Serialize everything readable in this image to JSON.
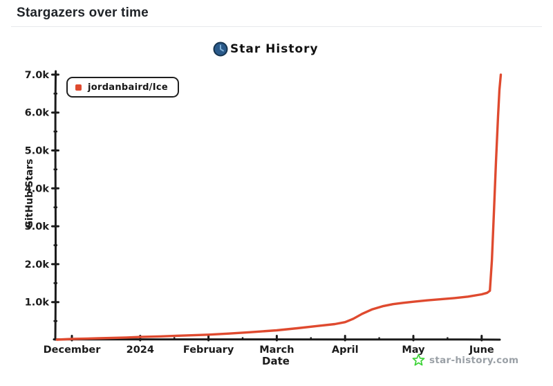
{
  "header": {
    "title": "Stargazers over time"
  },
  "chart": {
    "title": "Star History",
    "logo_color": "#2a5a8a",
    "legend": {
      "label": "jordanbaird/Ice",
      "marker_color": "#df4a2f",
      "interactable": true
    },
    "watermark": {
      "text": "star-history.com",
      "star_color": "#3bd235",
      "text_color": "#9aa0a6"
    }
  },
  "chart_data": {
    "type": "line",
    "title": "Star History",
    "xlabel": "Date",
    "ylabel": "GitHub Stars",
    "grid": false,
    "legend_position": "top-left",
    "x_tick_labels": [
      "December",
      "2024",
      "February",
      "March",
      "April",
      "May",
      "June"
    ],
    "x_tick_months": [
      0,
      1,
      2,
      3,
      4,
      5,
      6
    ],
    "x_note": "month index, 0 = December 2023 tick",
    "xlim": [
      -0.25,
      6.3
    ],
    "y_tick_labels": [
      "1.0k",
      "2.0k",
      "3.0k",
      "4.0k",
      "5.0k",
      "6.0k",
      "7.0k"
    ],
    "y_tick_values": [
      1000,
      2000,
      3000,
      4000,
      5000,
      6000,
      7000
    ],
    "ylim": [
      0,
      7000
    ],
    "axis_color": "#1b1b1b",
    "series": [
      {
        "name": "jordanbaird/Ice",
        "color": "#df4a2f",
        "points": [
          [
            -0.22,
            10
          ],
          [
            0,
            28
          ],
          [
            0.4,
            45
          ],
          [
            0.8,
            65
          ],
          [
            1.0,
            80
          ],
          [
            1.3,
            95
          ],
          [
            1.6,
            115
          ],
          [
            2.0,
            140
          ],
          [
            2.3,
            170
          ],
          [
            2.6,
            205
          ],
          [
            3.0,
            255
          ],
          [
            3.3,
            310
          ],
          [
            3.6,
            370
          ],
          [
            3.85,
            420
          ],
          [
            4.0,
            470
          ],
          [
            4.12,
            560
          ],
          [
            4.25,
            690
          ],
          [
            4.4,
            810
          ],
          [
            4.55,
            890
          ],
          [
            4.7,
            945
          ],
          [
            4.85,
            980
          ],
          [
            5.0,
            1010
          ],
          [
            5.2,
            1045
          ],
          [
            5.4,
            1075
          ],
          [
            5.6,
            1105
          ],
          [
            5.8,
            1145
          ],
          [
            6.0,
            1205
          ],
          [
            6.08,
            1245
          ],
          [
            6.12,
            1300
          ],
          [
            6.15,
            2100
          ],
          [
            6.18,
            3400
          ],
          [
            6.21,
            4700
          ],
          [
            6.24,
            5900
          ],
          [
            6.26,
            6600
          ],
          [
            6.28,
            7000
          ]
        ]
      }
    ]
  }
}
